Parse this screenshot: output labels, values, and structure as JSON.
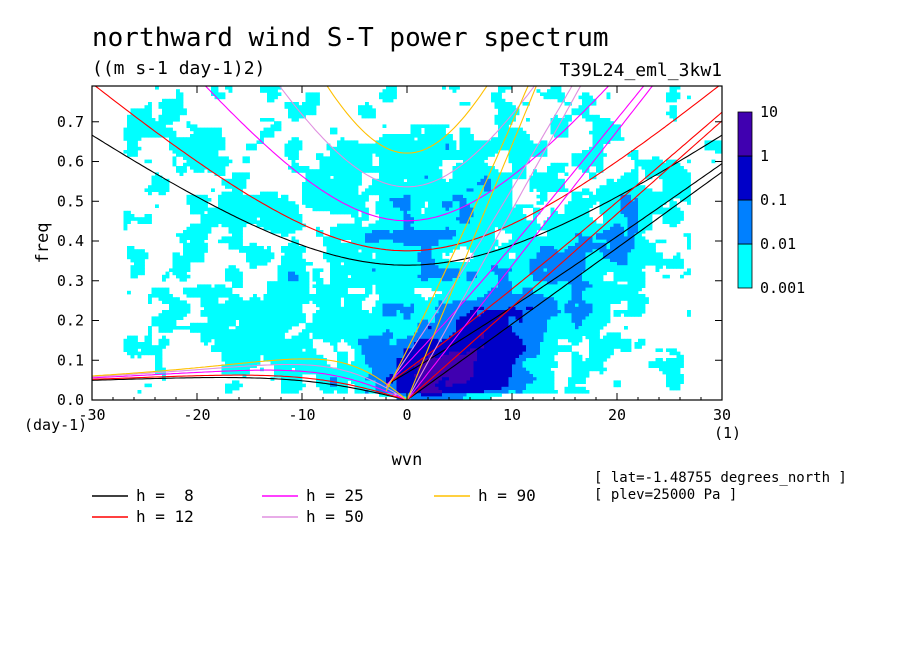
{
  "chart_data": {
    "type": "heatmap",
    "title": "northward wind S-T power spectrum",
    "subtitle": "((m s-1 day-1)2)",
    "experiment": "T39L24_eml_3kw1",
    "xlabel": "wvn",
    "ylabel": "freq",
    "x_unit_label": "(1)",
    "y_unit_label": "(day-1)",
    "xlim": [
      -30,
      30
    ],
    "ylim": [
      0,
      0.79
    ],
    "x_ticks": [
      -30,
      -20,
      -10,
      0,
      10,
      20,
      30
    ],
    "x_tick_labels": [
      "-30",
      "-20",
      "-10",
      "0",
      "10",
      "20",
      "30"
    ],
    "y_ticks": [
      0,
      0.1,
      0.2,
      0.3,
      0.4,
      0.5,
      0.6,
      0.7
    ],
    "y_tick_labels": [
      "0.0",
      "0.1",
      "0.2",
      "0.3",
      "0.4",
      "0.5",
      "0.6",
      "0.7"
    ],
    "colorbar": {
      "levels": [
        0.001,
        0.01,
        0.1,
        1,
        10
      ],
      "level_labels": [
        "0.001",
        "0.01",
        "0.1",
        "1",
        "10"
      ],
      "colors": [
        "#00ffff",
        "#0080ff",
        "#0000c8",
        "#4000b0"
      ]
    },
    "dispersion_curves": [
      {
        "label": "h =  8",
        "h": 8,
        "color": "#000000"
      },
      {
        "label": "h = 12",
        "h": 12,
        "color": "#ff0000"
      },
      {
        "label": "h = 25",
        "h": 25,
        "color": "#ff00ff"
      },
      {
        "label": "h = 50",
        "h": 50,
        "color": "#e090e0"
      },
      {
        "label": "h = 90",
        "h": 90,
        "color": "#ffc000"
      }
    ],
    "annotations": [
      "[ lat=-1.48755 degrees_north ]",
      "[ plev=25000 Pa ]"
    ]
  }
}
